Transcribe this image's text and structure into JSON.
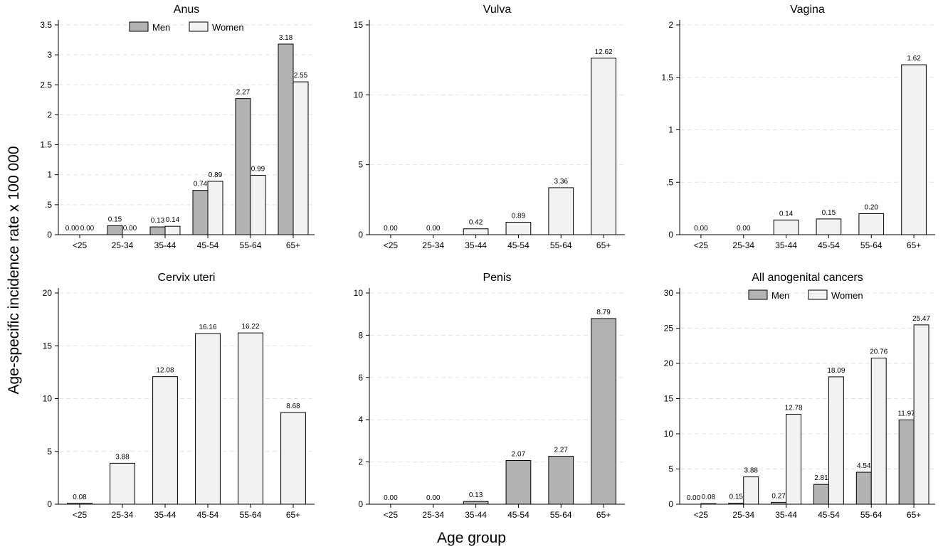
{
  "figure": {
    "ylabel": "Age-specific incidence rate x 100 000",
    "xlabel": "Age group"
  },
  "colors": {
    "men": "#b3b3b3",
    "women": "#f2f2f2",
    "grid": "#e3e3e3",
    "axis": "#000000"
  },
  "chart_data": [
    {
      "type": "bar",
      "title": "Anus",
      "categories": [
        "<25",
        "25-34",
        "35-44",
        "45-54",
        "55-64",
        "65+"
      ],
      "ylim": [
        0,
        3.5
      ],
      "yticks": [
        0,
        0.5,
        1,
        1.5,
        2,
        2.5,
        3,
        3.5
      ],
      "ytick_labels": [
        "0",
        ".5",
        "1",
        "1.5",
        "2",
        "2.5",
        "3",
        "3.5"
      ],
      "legend": [
        "Men",
        "Women"
      ],
      "series": [
        {
          "name": "Men",
          "values": [
            0.0,
            0.15,
            0.13,
            0.74,
            2.27,
            3.18
          ],
          "labels": [
            "0.00",
            "0.15",
            "0.13",
            "0.74",
            "2.27",
            "3.18"
          ]
        },
        {
          "name": "Women",
          "values": [
            0.0,
            0.0,
            0.14,
            0.89,
            0.99,
            2.55
          ],
          "labels": [
            "0.00",
            "0.00",
            "0.14",
            "0.89",
            "0.99",
            "2.55"
          ]
        }
      ]
    },
    {
      "type": "bar",
      "title": "Vulva",
      "categories": [
        "<25",
        "25-34",
        "35-44",
        "45-54",
        "55-64",
        "65+"
      ],
      "ylim": [
        0,
        15
      ],
      "yticks": [
        0,
        5,
        10,
        15
      ],
      "ytick_labels": [
        "0",
        "5",
        "10",
        "15"
      ],
      "legend": [],
      "series": [
        {
          "name": "Women",
          "values": [
            0.0,
            0.0,
            0.42,
            0.89,
            3.36,
            12.62
          ],
          "labels": [
            "0.00",
            "0.00",
            "0.42",
            "0.89",
            "3.36",
            "12.62"
          ]
        }
      ]
    },
    {
      "type": "bar",
      "title": "Vagina",
      "categories": [
        "<25",
        "25-34",
        "35-44",
        "45-54",
        "55-64",
        "65+"
      ],
      "ylim": [
        0,
        2
      ],
      "yticks": [
        0,
        0.5,
        1,
        1.5,
        2
      ],
      "ytick_labels": [
        "0",
        ".5",
        "1",
        "1.5",
        "2"
      ],
      "legend": [],
      "series": [
        {
          "name": "Women",
          "values": [
            0.0,
            0.0,
            0.14,
            0.15,
            0.2,
            1.62
          ],
          "labels": [
            "0.00",
            "0.00",
            "0.14",
            "0.15",
            "0.20",
            "1.62"
          ]
        }
      ]
    },
    {
      "type": "bar",
      "title": "Cervix uteri",
      "categories": [
        "<25",
        "25-34",
        "35-44",
        "45-54",
        "55-64",
        "65+"
      ],
      "ylim": [
        0,
        20
      ],
      "yticks": [
        0,
        5,
        10,
        15,
        20
      ],
      "ytick_labels": [
        "0",
        "5",
        "10",
        "15",
        "20"
      ],
      "legend": [],
      "series": [
        {
          "name": "Women",
          "values": [
            0.08,
            3.88,
            12.08,
            16.16,
            16.22,
            8.68
          ],
          "labels": [
            "0.08",
            "3.88",
            "12.08",
            "16.16",
            "16.22",
            "8.68"
          ]
        }
      ]
    },
    {
      "type": "bar",
      "title": "Penis",
      "categories": [
        "<25",
        "25-34",
        "35-44",
        "45-54",
        "55-64",
        "65+"
      ],
      "ylim": [
        0,
        10
      ],
      "yticks": [
        0,
        2,
        4,
        6,
        8,
        10
      ],
      "ytick_labels": [
        "0",
        "2",
        "4",
        "6",
        "8",
        "10"
      ],
      "legend": [],
      "series": [
        {
          "name": "Men",
          "values": [
            0.0,
            0.0,
            0.13,
            2.07,
            2.27,
            8.79
          ],
          "labels": [
            "0.00",
            "0.00",
            "0.13",
            "2.07",
            "2.27",
            "8.79"
          ]
        }
      ]
    },
    {
      "type": "bar",
      "title": "All anogenital cancers",
      "categories": [
        "<25",
        "25-34",
        "35-44",
        "45-54",
        "55-64",
        "65+"
      ],
      "ylim": [
        0,
        30
      ],
      "yticks": [
        0,
        5,
        10,
        15,
        20,
        25,
        30
      ],
      "ytick_labels": [
        "0",
        "5",
        "10",
        "15",
        "20",
        "25",
        "30"
      ],
      "legend": [
        "Men",
        "Women"
      ],
      "series": [
        {
          "name": "Men",
          "values": [
            0.0,
            0.15,
            0.27,
            2.81,
            4.54,
            11.97
          ],
          "labels": [
            "0.00",
            "0.15",
            "0.27",
            "2.81",
            "4.54",
            "11.97"
          ]
        },
        {
          "name": "Women",
          "values": [
            0.08,
            3.88,
            12.78,
            18.09,
            20.76,
            25.47
          ],
          "labels": [
            "0.08",
            "3.88",
            "12.78",
            "18.09",
            "20.76",
            "25.47"
          ]
        }
      ]
    }
  ]
}
